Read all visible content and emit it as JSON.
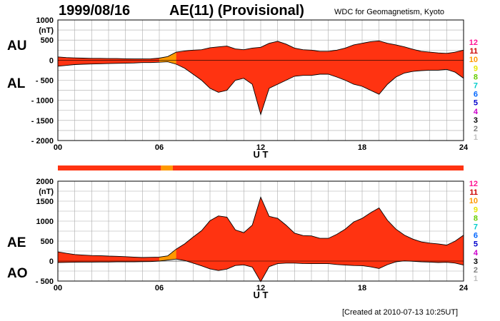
{
  "header": {
    "date": "1999/08/16",
    "title": "AE(11) (Provisional)",
    "source": "WDC for Geomagnetism, Kyoto",
    "created": "[Created at 2010-07-13 10:25UT]"
  },
  "colors": {
    "fill_main": "#ff3311",
    "fill_low_count": "#ff9900",
    "outline": "#000000",
    "grid": "#aaaaaa"
  },
  "legend": {
    "counts": [
      "12",
      "11",
      "10",
      "9",
      "8",
      "7",
      "6",
      "5",
      "4",
      "3",
      "2",
      "1"
    ],
    "colors": [
      "#ff1493",
      "#cc0000",
      "#ff9900",
      "#e6e600",
      "#66cc00",
      "#00cccc",
      "#0066ff",
      "#0000cc",
      "#cc00cc",
      "#000000",
      "#808080",
      "#c0c0c0"
    ]
  },
  "chart_data": [
    {
      "type": "area",
      "panel": "AU/AL",
      "label_top": "AU",
      "label_bottom": "AL",
      "unit": "(nT)",
      "xlabel": "U T",
      "xlim": [
        0,
        24
      ],
      "ylim": [
        -2000,
        1000
      ],
      "yticks": [
        "1000",
        "500",
        "0",
        "- 500",
        "- 1000",
        "- 1500",
        "- 2000"
      ],
      "ytick_values": [
        1000,
        500,
        0,
        -500,
        -1000,
        -1500,
        -2000
      ],
      "xticks": [
        "00",
        "06",
        "12",
        "18",
        "24"
      ],
      "xtick_values": [
        0,
        6,
        12,
        18,
        24
      ],
      "x": [
        0,
        0.5,
        1,
        1.5,
        2,
        2.5,
        3,
        3.5,
        4,
        4.5,
        5,
        5.5,
        6,
        6.5,
        7,
        7.5,
        8,
        8.5,
        9,
        9.5,
        10,
        10.5,
        11,
        11.5,
        12,
        12.5,
        13,
        13.5,
        14,
        14.5,
        15,
        15.5,
        16,
        16.5,
        17,
        17.5,
        18,
        18.5,
        19,
        19.5,
        20,
        20.5,
        21,
        21.5,
        22,
        22.5,
        23,
        23.5,
        24
      ],
      "series": [
        {
          "name": "AU",
          "values": [
            80,
            65,
            55,
            50,
            45,
            45,
            40,
            40,
            35,
            30,
            30,
            35,
            50,
            90,
            200,
            230,
            250,
            260,
            310,
            330,
            350,
            280,
            260,
            300,
            320,
            420,
            470,
            400,
            300,
            260,
            250,
            220,
            220,
            250,
            300,
            380,
            420,
            460,
            480,
            420,
            380,
            330,
            270,
            220,
            200,
            180,
            170,
            200,
            250
          ]
        },
        {
          "name": "AL",
          "values": [
            -150,
            -130,
            -110,
            -100,
            -95,
            -90,
            -85,
            -80,
            -75,
            -70,
            -60,
            -60,
            -50,
            -40,
            -100,
            -200,
            -350,
            -500,
            -700,
            -800,
            -750,
            -500,
            -450,
            -600,
            -1350,
            -700,
            -600,
            -500,
            -400,
            -380,
            -380,
            -350,
            -350,
            -420,
            -500,
            -600,
            -650,
            -750,
            -850,
            -600,
            -420,
            -320,
            -280,
            -260,
            -250,
            -250,
            -230,
            -300,
            -450
          ]
        }
      ]
    },
    {
      "type": "area",
      "panel": "AE/AO",
      "label_top": "AE",
      "label_bottom": "AO",
      "unit": "(nT)",
      "xlabel": "U T",
      "xlim": [
        0,
        24
      ],
      "ylim": [
        -500,
        2000
      ],
      "yticks": [
        "2000",
        "1500",
        "1000",
        "500",
        "0",
        "- 500"
      ],
      "ytick_values": [
        2000,
        1500,
        1000,
        500,
        0,
        -500
      ],
      "xticks": [
        "00",
        "06",
        "12",
        "18",
        "24"
      ],
      "xtick_values": [
        0,
        6,
        12,
        18,
        24
      ],
      "x": [
        0,
        0.5,
        1,
        1.5,
        2,
        2.5,
        3,
        3.5,
        4,
        4.5,
        5,
        5.5,
        6,
        6.5,
        7,
        7.5,
        8,
        8.5,
        9,
        9.5,
        10,
        10.5,
        11,
        11.5,
        12,
        12.5,
        13,
        13.5,
        14,
        14.5,
        15,
        15.5,
        16,
        16.5,
        17,
        17.5,
        18,
        18.5,
        19,
        19.5,
        20,
        20.5,
        21,
        21.5,
        22,
        22.5,
        23,
        23.5,
        24
      ],
      "series": [
        {
          "name": "AE",
          "values": [
            230,
            195,
            165,
            150,
            140,
            135,
            125,
            120,
            110,
            100,
            90,
            95,
            100,
            130,
            300,
            430,
            600,
            760,
            1010,
            1130,
            1100,
            780,
            710,
            900,
            1600,
            1120,
            1070,
            900,
            700,
            640,
            630,
            570,
            570,
            670,
            800,
            980,
            1070,
            1210,
            1330,
            1020,
            800,
            650,
            550,
            480,
            450,
            430,
            400,
            500,
            650
          ]
        },
        {
          "name": "AO",
          "values": [
            -35,
            -33,
            -28,
            -25,
            -25,
            -23,
            -23,
            -20,
            -20,
            -20,
            -15,
            -13,
            0,
            25,
            50,
            15,
            -50,
            -120,
            -195,
            -235,
            -200,
            -110,
            -95,
            -150,
            -515,
            -140,
            -65,
            -50,
            -50,
            -60,
            -65,
            -65,
            -65,
            -85,
            -100,
            -110,
            -115,
            -145,
            -185,
            -90,
            -20,
            5,
            -5,
            -20,
            -25,
            -35,
            -30,
            -50,
            -100
          ]
        }
      ],
      "coverage_bar": [
        {
          "from": 0,
          "to": 6.1,
          "count": "11"
        },
        {
          "from": 6.1,
          "to": 6.8,
          "count": "10"
        },
        {
          "from": 6.8,
          "to": 24,
          "count": "11"
        }
      ]
    }
  ]
}
